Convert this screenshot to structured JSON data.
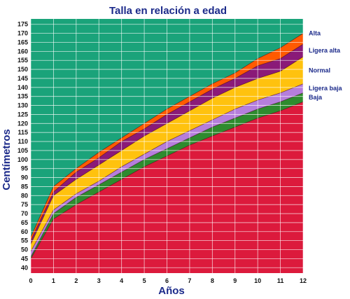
{
  "chart_data": {
    "type": "area",
    "title": "Talla en relación a edad",
    "xlabel": "Años",
    "ylabel": "Centímetros",
    "xlim": [
      0,
      12
    ],
    "ylim": [
      37,
      178
    ],
    "x_ticks": [
      0,
      1,
      2,
      3,
      4,
      5,
      6,
      7,
      8,
      9,
      10,
      11,
      12
    ],
    "y_ticks": [
      40,
      45,
      50,
      55,
      60,
      65,
      70,
      75,
      80,
      85,
      90,
      95,
      100,
      105,
      110,
      115,
      120,
      125,
      130,
      135,
      140,
      145,
      150,
      155,
      160,
      165,
      170,
      175
    ],
    "grid": true,
    "x": [
      0,
      1,
      2,
      3,
      4,
      5,
      6,
      7,
      8,
      9,
      10,
      11,
      12
    ],
    "boundaries": [
      [
        45,
        67,
        75,
        82,
        89,
        96,
        102,
        108,
        113,
        118,
        123,
        127,
        132
      ],
      [
        46,
        70,
        79,
        86,
        93,
        100,
        106,
        112,
        118,
        123,
        128,
        132,
        137
      ],
      [
        49,
        72,
        81,
        88,
        96,
        103,
        110,
        116,
        122,
        128,
        133,
        137,
        142
      ],
      [
        53,
        80,
        89,
        97,
        105,
        113,
        120,
        127,
        134,
        140,
        145,
        149,
        157
      ],
      [
        55,
        82,
        93,
        101,
        110,
        117,
        125,
        132,
        139,
        145,
        152,
        156,
        164
      ],
      [
        57,
        85,
        95,
        104,
        112,
        120,
        128,
        135,
        142,
        148,
        156,
        162,
        170
      ]
    ],
    "bands": [
      {
        "name": "Baja",
        "color": "#2e8b2e"
      },
      {
        "name": "Ligera baja",
        "color": "#b57edc"
      },
      {
        "name": "Normal",
        "color": "#ffc20e"
      },
      {
        "name": "Ligera alta",
        "color": "#8a1a78"
      },
      {
        "name": "Alta",
        "color": "#ff5a00"
      }
    ],
    "colors": {
      "below": "#dc1a3c",
      "above": "#1aa37a",
      "grid": "#ffffff",
      "outline": "#4a0010"
    }
  }
}
